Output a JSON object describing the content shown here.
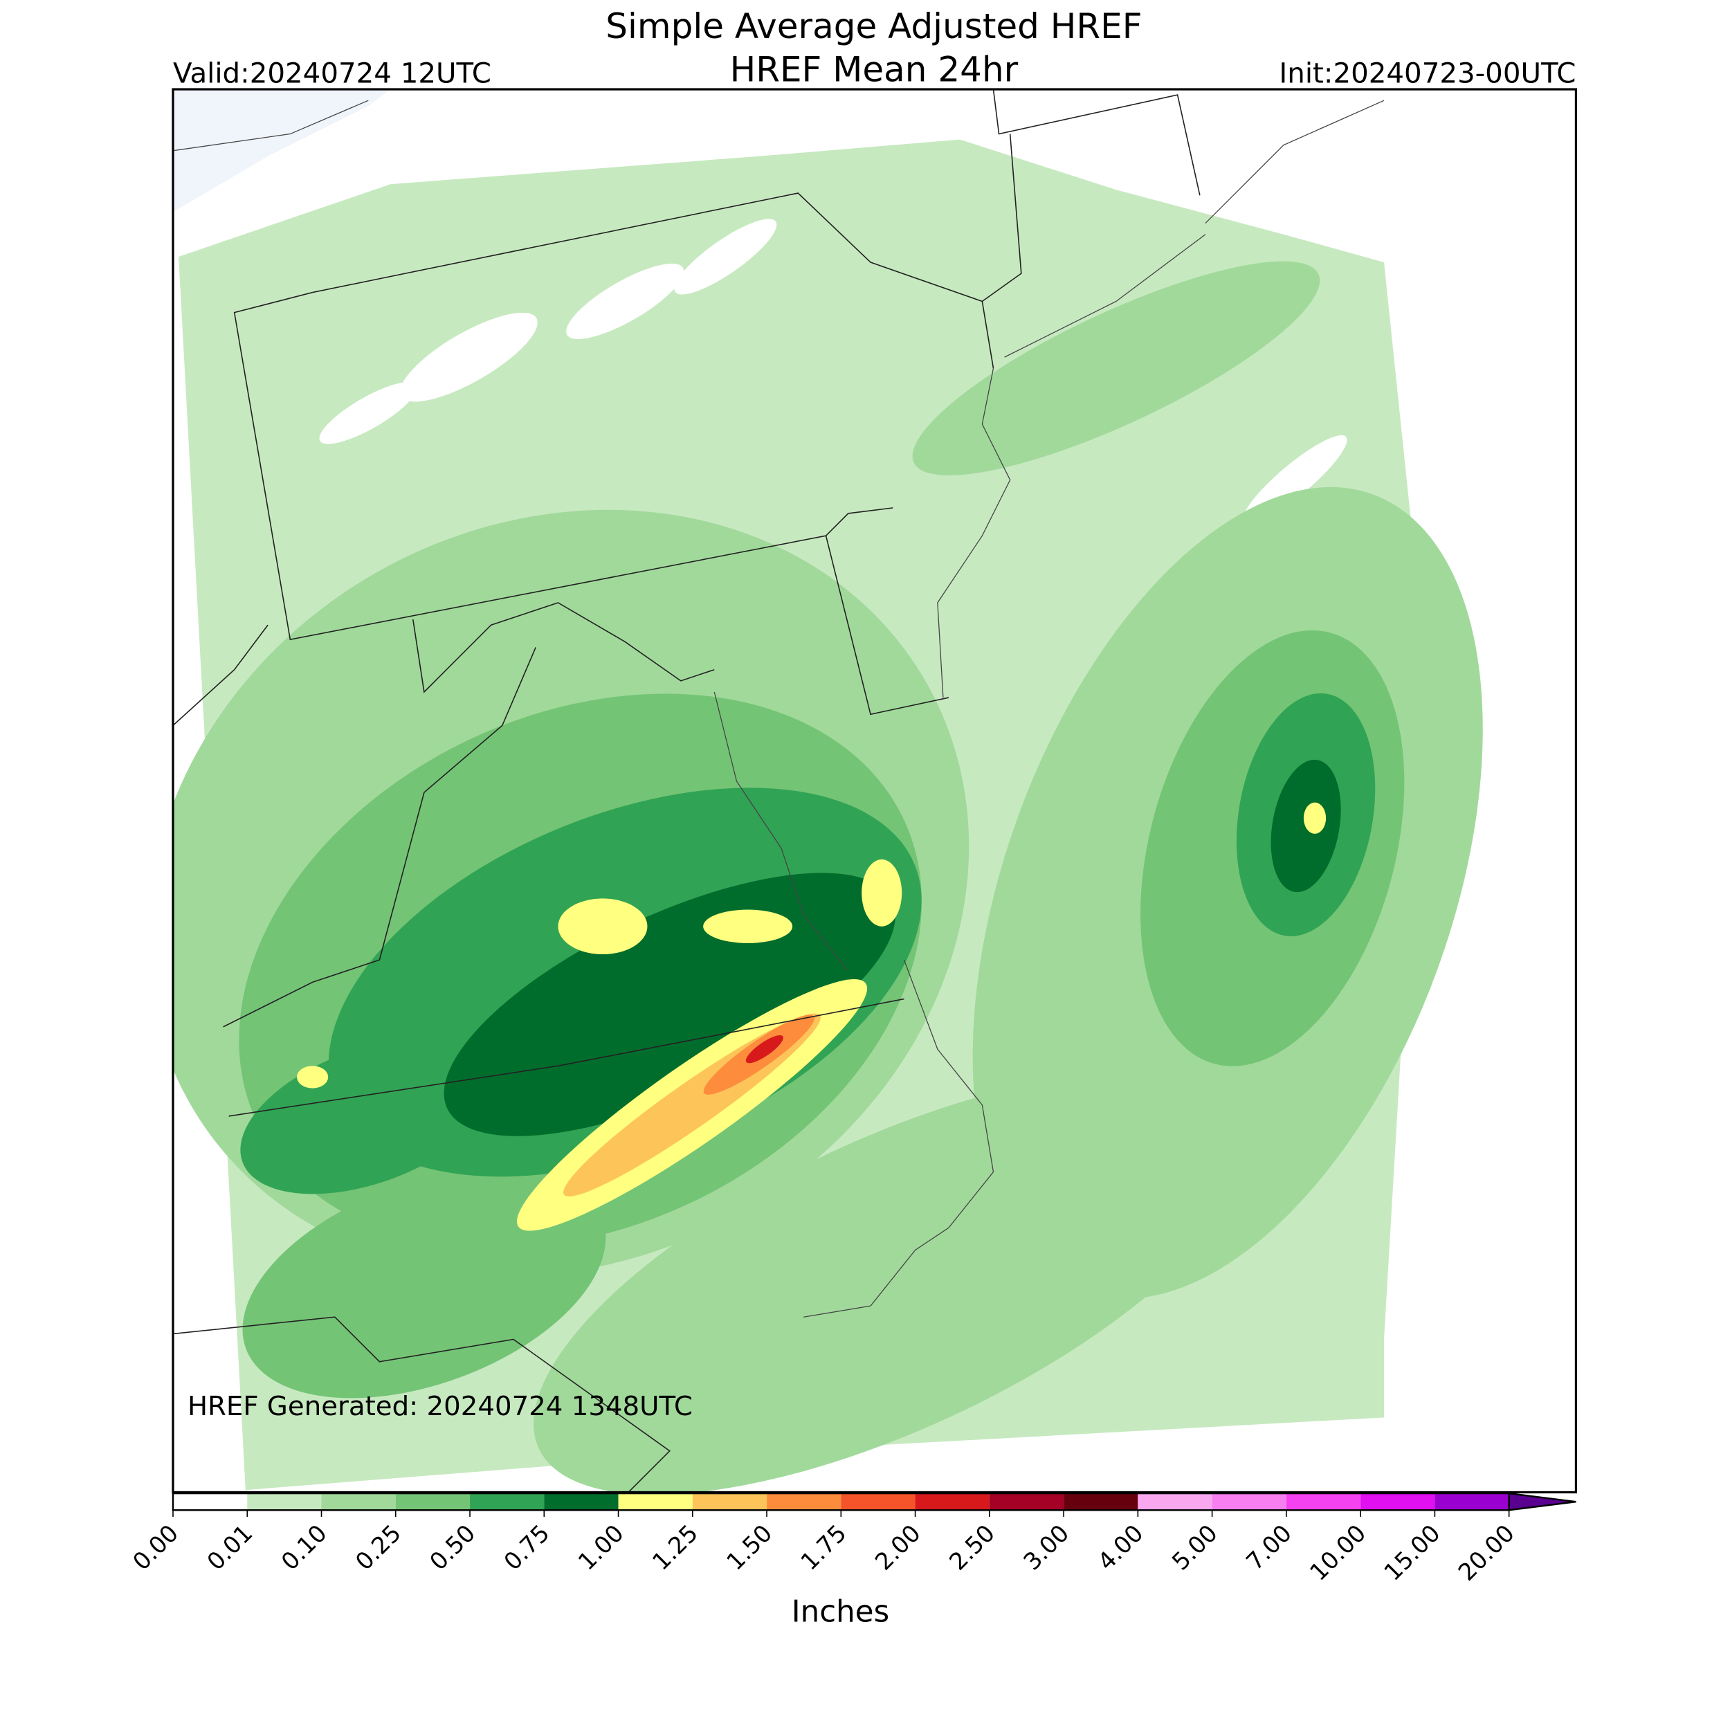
{
  "title": [
    "Simple Average Adjusted HREF",
    "HREF Mean 24hr"
  ],
  "valid": "Valid:20240724 12UTC",
  "init": "Init:20240723-00UTC",
  "generated": "HREF Generated: 20240724 1348UTC",
  "colorbar": {
    "label": "Inches",
    "ticks": [
      {
        "value": 0,
        "label": "0.00"
      },
      {
        "value": 0.01,
        "label": "0.01"
      },
      {
        "value": 0.1,
        "label": "0.10"
      },
      {
        "value": 0.25,
        "label": "0.25"
      },
      {
        "value": 0.5,
        "label": "0.50"
      },
      {
        "value": 0.75,
        "label": "0.75"
      },
      {
        "value": 1,
        "label": "1.00"
      },
      {
        "value": 1.25,
        "label": "1.25"
      },
      {
        "value": 1.5,
        "label": "1.50"
      },
      {
        "value": 1.75,
        "label": "1.75"
      },
      {
        "value": 2,
        "label": "2.00"
      },
      {
        "value": 2.5,
        "label": "2.50"
      },
      {
        "value": 3,
        "label": "3.00"
      },
      {
        "value": 4,
        "label": "4.00"
      },
      {
        "value": 5,
        "label": "5.00"
      },
      {
        "value": 7,
        "label": "7.00"
      },
      {
        "value": 10,
        "label": "10.00"
      },
      {
        "value": 15,
        "label": "15.00"
      },
      {
        "value": 20,
        "label": "20.00"
      }
    ],
    "colors": [
      "#ffffff",
      "#c7e9c0",
      "#a1d99b",
      "#74c476",
      "#31a354",
      "#006d2c",
      "#ffff80",
      "#fdc45a",
      "#fd8d3c",
      "#f5542a",
      "#d7191c",
      "#a50026",
      "#67000d",
      "#f9a8f0",
      "#f77ff0",
      "#f542f0",
      "#e010f0",
      "#9a00d0"
    ],
    "extend_color": "#5a0090"
  }
}
